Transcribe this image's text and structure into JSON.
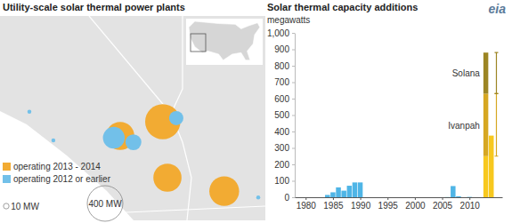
{
  "logo": "eia",
  "chart_data": [
    {
      "type": "bubble_map",
      "title": "Utility-scale solar thermal power plants",
      "legend": "lower left",
      "series": [
        {
          "name": "operating 2013 - 2014",
          "color": "#f2ab33",
          "lon": [
            -117.29,
            -115.55,
            -115.36,
            -113.04
          ],
          "lat": [
            34.14,
            34.62,
            32.74,
            32.29
          ],
          "size": [
            250,
            392,
            250,
            280
          ]
        },
        {
          "name": "operating 2012 or earlier",
          "color": "#72c0e9",
          "lon": [
            -117.55,
            -116.75,
            -115.0,
            -121.0,
            -120.02,
            -111.65
          ],
          "lat": [
            34.08,
            33.93,
            34.74,
            34.95,
            33.99,
            32.08
          ],
          "size": [
            150,
            80,
            64,
            5,
            5,
            5
          ]
        }
      ],
      "size_legend": {
        "values": [
          10,
          400
        ],
        "labels": [
          "10 MW",
          "400 MW"
        ]
      }
    },
    {
      "type": "bar",
      "title": "Solar thermal capacity additions",
      "y_label": "megawatts",
      "stacked": true,
      "grid": false,
      "x": [
        1984,
        1985,
        1986,
        1987,
        1988,
        1989,
        1990,
        2006,
        2007,
        2008,
        2010,
        2013,
        2014
      ],
      "series": [
        {
          "colors": [
            "#4fb5e6",
            "#4fb5e6",
            "#4fb5e6",
            "#4fb5e6",
            "#4fb5e6",
            "#4fb5e6",
            "#4fb5e6",
            "#4fb5e6",
            "#4fb5e6",
            "#4fb5e6",
            "#4fb5e6",
            "#f7c81e",
            "#f7c81e"
          ],
          "values": [
            14,
            30,
            60,
            40,
            70,
            90,
            90,
            1,
            68,
            6,
            2,
            250,
            375
          ]
        },
        {
          "name": "Ivanpah",
          "color": "#d6a722",
          "values": [
            null,
            null,
            null,
            null,
            null,
            null,
            null,
            null,
            null,
            null,
            null,
            380,
            null
          ]
        },
        {
          "name": "Solana",
          "color": "#9c8524",
          "values": [
            null,
            null,
            null,
            null,
            null,
            null,
            null,
            null,
            null,
            null,
            null,
            250,
            null
          ]
        }
      ],
      "xlim": [
        1978,
        2016
      ],
      "xticks": [
        1980,
        1985,
        1990,
        1995,
        2000,
        2005,
        2010
      ],
      "ylim": [
        0,
        1000
      ],
      "yticks": [
        0,
        100,
        200,
        300,
        400,
        500,
        600,
        700,
        800,
        900,
        {
          "value": 1000,
          "label": "1,000"
        }
      ]
    }
  ]
}
